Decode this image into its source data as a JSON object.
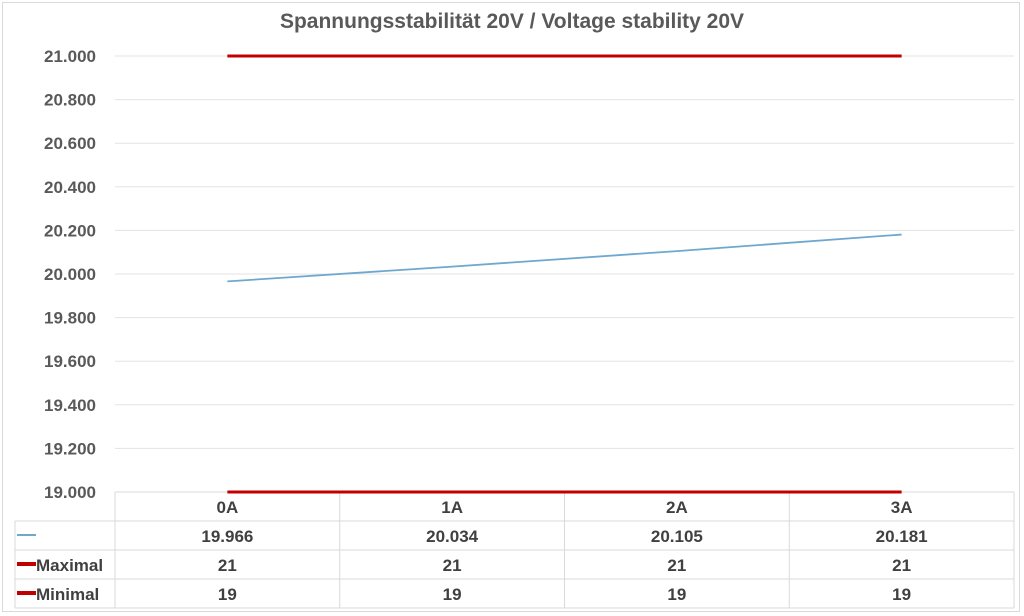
{
  "chart_data": {
    "type": "line",
    "title": "Spannungsstabilität 20V / Voltage stability 20V",
    "categories": [
      "0A",
      "1A",
      "2A",
      "3A"
    ],
    "series": [
      {
        "name": "",
        "values": [
          19.966,
          20.034,
          20.105,
          20.181
        ],
        "value_labels": [
          "19.966",
          "20.034",
          "20.105",
          "20.181"
        ],
        "color": "#6fa8cf"
      },
      {
        "name": "Maximal",
        "values": [
          21,
          21,
          21,
          21
        ],
        "value_labels": [
          "21",
          "21",
          "21",
          "21"
        ],
        "color": "#c00000"
      },
      {
        "name": "Minimal",
        "values": [
          19,
          19,
          19,
          19
        ],
        "value_labels": [
          "19",
          "19",
          "19",
          "19"
        ],
        "color": "#c00000"
      }
    ],
    "ylim": [
      19,
      21
    ],
    "yticks": [
      "19.000",
      "19.200",
      "19.400",
      "19.600",
      "19.800",
      "20.000",
      "20.200",
      "20.400",
      "20.600",
      "20.800",
      "21.000"
    ],
    "grid": true,
    "legend": "data-table"
  }
}
